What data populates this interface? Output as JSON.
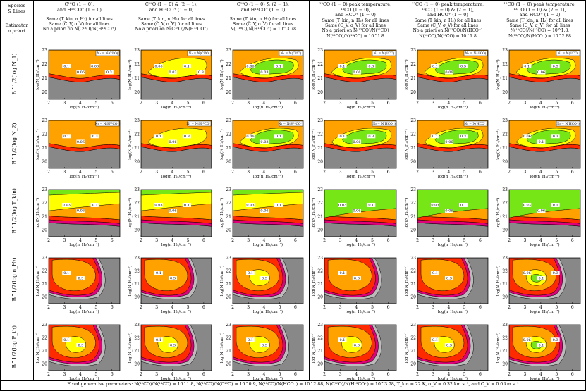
{
  "header": {
    "species_label": "Species",
    "lines_label": "& Lines",
    "estimator_label": "Estimator",
    "apriori_label": "a priori",
    "columns": [
      {
        "l1": "C¹⁸O (1 − 0),",
        "l2": "and H¹³CO⁺ (1 − 0)",
        "l3": ""
      },
      {
        "l1": "C¹⁸O (1 − 0) & (2 − 1),",
        "l2": "and H¹³CO⁺ (1 − 0)",
        "l3": ""
      },
      {
        "l1": "C¹⁸O (1 − 0) & (2 − 1),",
        "l2": "and H¹³CO⁺ (1 − 0)",
        "l3": ""
      },
      {
        "l1": "¹²CO (1 − 0) peak temperature,",
        "l2": "¹³CO (1 − 0),",
        "l3": "and HCO⁺ (1 − 0)"
      },
      {
        "l1": "¹²CO (1 − 0) peak temperature,",
        "l2": "¹³CO (1 − 0) & (2 − 1),",
        "l3": "and HCO⁺ (1 − 0)"
      },
      {
        "l1": "¹²CO (1 − 0) peak temperature,",
        "l2": "¹³CO (1 − 0) & (2 − 1),",
        "l3": "and HCO⁺ (1 − 0)"
      }
    ],
    "estimators": [
      {
        "l1": "Same (T_kin, n_H₂) for all lines",
        "l2": "Same (C_V, σ_V) for all lines",
        "l3": "No a priori on N(C¹⁸O)/N(H¹³CO⁺)",
        "l4": ""
      },
      {
        "l1": "Same (T_kin, n_H₂) for all lines",
        "l2": "Same (C_V, σ_V) for all lines",
        "l3": "No a priori on N(C¹⁸O)/N(H¹³CO⁺)",
        "l4": ""
      },
      {
        "l1": "Same (T_kin, n_H₂) for all lines",
        "l2": "Same (C_V, σ_V) for all lines",
        "l3": "N(C¹⁸O)/N(H¹³CO⁺) = 10^3.78",
        "l4": ""
      },
      {
        "l1": "Same (T_kin, n_H₂) for all lines",
        "l2": "Same (C_V, σ_V) for all lines",
        "l3": "No a priori on N(¹³CO)/N(¹²CO)",
        "l4": "N(¹²CO)/N(¹³CO) = 10^1.8"
      },
      {
        "l1": "Same (T_kin, n_H₂) for all lines",
        "l2": "Same (C_V, σ_V) for all lines",
        "l3": "No a priori on N(¹³CO)/N(HCO⁺)",
        "l4": "N(¹²CO)/N(¹³CO) = 10^1.8"
      },
      {
        "l1": "Same (T_kin, n_H₂) for all lines",
        "l2": "Same (C_V, σ_V) for all lines",
        "l3": "N(¹²CO)/N(¹³CO) = 10^1.8,",
        "l4": "N(¹³CO)/N(HCO⁺) = 10^2.88"
      }
    ]
  },
  "rows": [
    {
      "label": "B^1/2(log N_1)"
    },
    {
      "label": "B^1/2(log N_2)"
    },
    {
      "label": "B^1/2(log T_kin)"
    },
    {
      "label": "B^1/2(log n_H₂)"
    },
    {
      "label": "B^1/2(log P_th)"
    }
  ],
  "axes": {
    "xlabel": "log(n_H₂/cm⁻³)",
    "ylabel": "log(N_H₂/cm⁻²)",
    "xticks": [
      "2",
      "3",
      "4",
      "5",
      "6"
    ],
    "yticks": [
      "20",
      "21",
      "22",
      "23"
    ]
  },
  "legend_tags": {
    "r0": [
      "N₁ = N(C¹⁸O)",
      "N₁ = N(C¹⁸O)",
      "N₁ = N(C¹⁸O)",
      "N₁ = N(¹³CO)",
      "N₁ = N(¹³CO)",
      "N₁ = N(¹³CO)"
    ],
    "r1": [
      "N₂ = N(H¹³CO⁺)",
      "N₂ = N(H¹³CO⁺)",
      "N₂ = N(H¹³CO⁺)",
      "N₂ = N(HCO⁺)",
      "N₂ = N(HCO⁺)",
      "N₂ = N(HCO⁺)"
    ]
  },
  "colors": {
    "gray": "#888888",
    "lightgray": "#bbbbbb",
    "magenta": "#e0007a",
    "red": "#ff2a00",
    "orange": "#ffa200",
    "yellow": "#ffff00",
    "green": "#77e617"
  },
  "chart_data": {
    "type": "heatmap",
    "title": "",
    "xlabel": "log(n_H₂/cm⁻³)",
    "ylabel": "log(N_H₂/cm⁻²)",
    "xlim": [
      2,
      6.5
    ],
    "ylim": [
      20,
      23.5
    ],
    "contour_values": [
      "0.03",
      "0.06",
      "0.1",
      "0.3"
    ],
    "panels": [
      [
        {
          "labels": [
            "0.1",
            "0.06",
            "0.03",
            "0.3"
          ]
        },
        {
          "labels": [
            "0.06",
            "0.03",
            "0.1",
            "0.3"
          ]
        },
        {
          "labels": [
            "0.06",
            "0.03",
            "0.1"
          ]
        },
        {
          "labels": [
            "0.1",
            "0.06",
            "0.3"
          ]
        },
        {
          "labels": [
            "0.1",
            "0.06",
            "0.3"
          ]
        },
        {
          "labels": [
            "0.1",
            "0.06",
            "0.3"
          ]
        }
      ],
      [
        {
          "labels": [
            "0.1",
            "0.06",
            "0.3"
          ]
        },
        {
          "labels": [
            "0.1",
            "0.06",
            "0.3"
          ]
        },
        {
          "labels": [
            "0.06",
            "0.03",
            "0.1"
          ]
        },
        {
          "labels": [
            "0.1",
            "0.06",
            "0.3"
          ]
        },
        {
          "labels": [
            "0.1",
            "0.06",
            "0.3"
          ]
        },
        {
          "labels": [
            "0.06",
            "0.1",
            "0.3"
          ]
        }
      ],
      [
        {
          "labels": [
            "0.03",
            "0.06",
            "0.1"
          ]
        },
        {
          "labels": [
            "0.03",
            "0.06",
            "0.1"
          ]
        },
        {
          "labels": [
            "0.03",
            "0.06",
            "0.1"
          ]
        },
        {
          "labels": [
            "0.03",
            "0.06",
            "0.1"
          ]
        },
        {
          "labels": [
            "0.03",
            "0.06",
            "0.1"
          ]
        },
        {
          "labels": [
            "0.03",
            "0.06",
            "0.1"
          ]
        }
      ],
      [
        {
          "labels": [
            "0.1",
            "0.3"
          ]
        },
        {
          "labels": [
            "0.1",
            "0.3"
          ]
        },
        {
          "labels": [
            "0.1",
            "0.3"
          ]
        },
        {
          "labels": [
            "0.1",
            "0.3"
          ]
        },
        {
          "labels": [
            "0.1",
            "0.3"
          ]
        },
        {
          "labels": [
            "0.06",
            "0.1",
            "0.3"
          ]
        }
      ],
      [
        {
          "labels": [
            "0.1",
            "0.3"
          ]
        },
        {
          "labels": [
            "0.1",
            "0.3"
          ]
        },
        {
          "labels": [
            "0.1",
            "0.3"
          ]
        },
        {
          "labels": [
            "0.1",
            "0.3"
          ]
        },
        {
          "labels": [
            "0.1",
            "0.3"
          ]
        },
        {
          "labels": [
            "0.06",
            "0.1",
            "0.3"
          ]
        }
      ]
    ]
  },
  "footer": "Fixed generative parameters: N(¹²CO)/N(¹³CO) = 10^1.8, N(¹³CO)/N(C¹⁸O) = 10^0.9, N(¹³CO)/N(HCO⁺) = 10^2.88, N(C¹⁸O)/N(H¹³CO⁺) = 10^3.78, T_kin = 22 K, σ_V = 0.32 km s⁻¹, and C_V = 0.0 km s⁻¹"
}
